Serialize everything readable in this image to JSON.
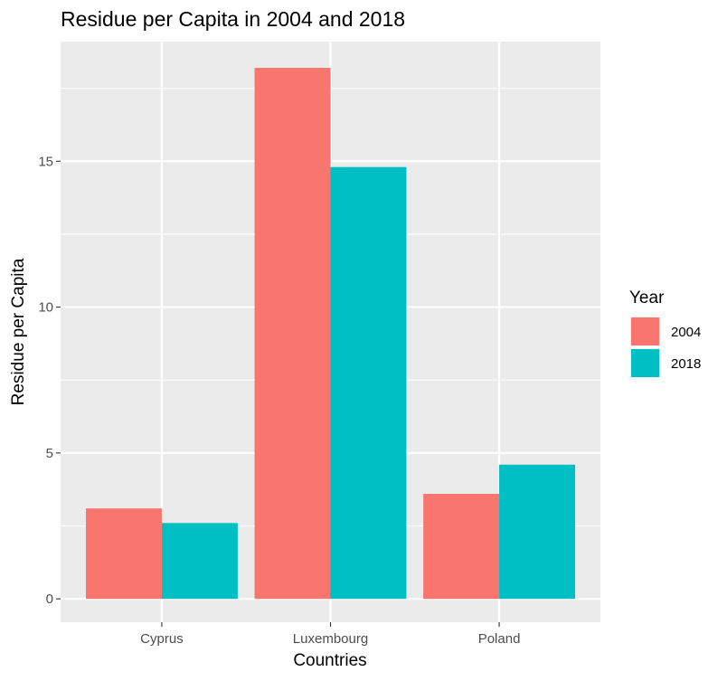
{
  "chart_data": {
    "type": "bar",
    "title": "Residue per Capita in 2004 and 2018",
    "xlabel": "Countries",
    "ylabel": "Residue per Capita",
    "categories": [
      "Cyprus",
      "Luxembourg",
      "Poland"
    ],
    "series": [
      {
        "name": "2004",
        "color": "#F8766D",
        "values": [
          3.1,
          18.2,
          3.6
        ]
      },
      {
        "name": "2018",
        "color": "#00BFC4",
        "values": [
          2.6,
          14.8,
          4.6
        ]
      }
    ],
    "ylim": [
      -0.8,
      19.1
    ],
    "yticks": [
      0,
      5,
      10,
      15
    ],
    "ytick_labels": [
      "0",
      "5",
      "10",
      "15"
    ],
    "grid": true,
    "legend": {
      "title": "Year",
      "position": "right"
    },
    "panel_background": "#EBEBEB",
    "grid_color": "#FFFFFF"
  }
}
